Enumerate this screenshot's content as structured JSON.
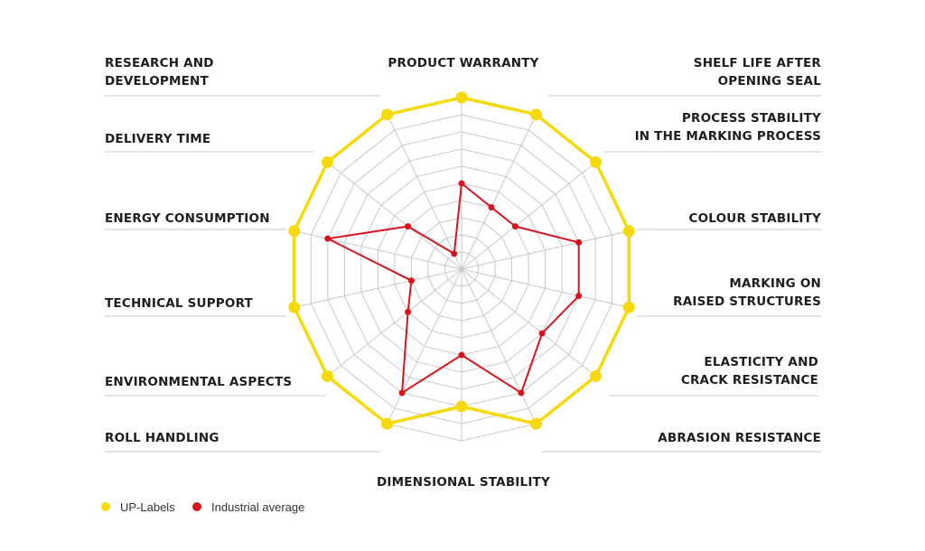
{
  "chart_data": {
    "type": "radar",
    "max": 10,
    "rings": 10,
    "axes": [
      "PRODUCT WARRANTY",
      "SHELF LIFE AFTER OPENING SEAL",
      "PROCESS STABILITY IN THE MARKING PROCESS",
      "COLOUR STABILITY",
      "MARKING ON RAISED STRUCTURES",
      "ELASTICITY AND CRACK RESISTANCE",
      "ABRASION RESISTANCE",
      "DIMENSIONAL STABILITY",
      "ROLL HANDLING",
      "ENVIRONMENTAL ASPECTS",
      "TECHNICAL SUPPORT",
      "ENERGY CONSUMPTION",
      "DELIVERY TIME",
      "RESEARCH AND DEVELOPMENT"
    ],
    "axis_label_lines": [
      [
        "PRODUCT WARRANTY"
      ],
      [
        "SHELF LIFE AFTER",
        "OPENING SEAL"
      ],
      [
        "PROCESS STABILITY",
        "IN THE MARKING PROCESS"
      ],
      [
        "COLOUR STABILITY"
      ],
      [
        "MARKING ON",
        "RAISED STRUCTURES"
      ],
      [
        "ELASTICITY AND",
        "CRACK RESISTANCE"
      ],
      [
        "ABRASION RESISTANCE"
      ],
      [
        "DIMENSIONAL STABILITY"
      ],
      [
        "ROLL HANDLING"
      ],
      [
        "ENVIRONMENTAL ASPECTS"
      ],
      [
        "TECHNICAL SUPPORT"
      ],
      [
        "ENERGY CONSUMPTION"
      ],
      [
        "DELIVERY TIME"
      ],
      [
        "RESEARCH AND",
        "DEVELOPMENT"
      ]
    ],
    "series": [
      {
        "name": "UP-Labels",
        "color": "#f5d90a",
        "values": [
          10,
          10,
          10,
          10,
          10,
          10,
          10,
          8,
          10,
          10,
          10,
          10,
          10,
          10
        ]
      },
      {
        "name": "Industrial average",
        "color": "#d7141e",
        "values": [
          5,
          4,
          4,
          7,
          7,
          6,
          8,
          5,
          8,
          4,
          3,
          8,
          4,
          1
        ]
      }
    ],
    "grid": true,
    "legend_position": "bottom-left"
  }
}
